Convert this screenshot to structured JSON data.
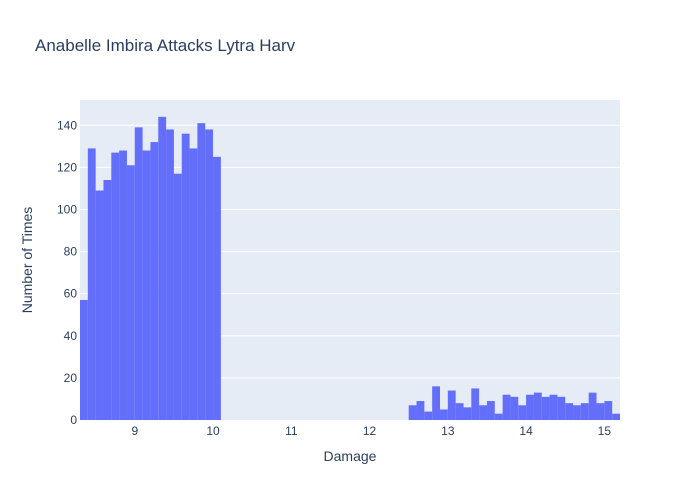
{
  "chart_data": {
    "type": "bar",
    "title": "Anabelle Imbira Attacks Lytra Harv",
    "xlabel": "Damage",
    "ylabel": "Number of Times",
    "xlim": [
      8.3,
      15.2
    ],
    "ylim": [
      0,
      152
    ],
    "bin_width": 0.1,
    "x_ticks": [
      9,
      10,
      11,
      12,
      13,
      14,
      15
    ],
    "x_tick_labels": [
      "9",
      "10",
      "11",
      "12",
      "13",
      "14",
      "15"
    ],
    "y_ticks": [
      0,
      20,
      40,
      60,
      80,
      100,
      120,
      140
    ],
    "y_tick_labels": [
      "0",
      "20",
      "40",
      "60",
      "80",
      "100",
      "120",
      "140"
    ],
    "grid": true,
    "legend": "none",
    "bar_color": "#636efa",
    "plot_bg": "#e5ecf6",
    "bins": [
      {
        "x": 8.3,
        "y": 57
      },
      {
        "x": 8.4,
        "y": 129
      },
      {
        "x": 8.5,
        "y": 109
      },
      {
        "x": 8.6,
        "y": 114
      },
      {
        "x": 8.7,
        "y": 127
      },
      {
        "x": 8.8,
        "y": 128
      },
      {
        "x": 8.9,
        "y": 121
      },
      {
        "x": 9.0,
        "y": 139
      },
      {
        "x": 9.1,
        "y": 128
      },
      {
        "x": 9.2,
        "y": 132
      },
      {
        "x": 9.3,
        "y": 144
      },
      {
        "x": 9.4,
        "y": 138
      },
      {
        "x": 9.5,
        "y": 117
      },
      {
        "x": 9.6,
        "y": 136
      },
      {
        "x": 9.7,
        "y": 129
      },
      {
        "x": 9.8,
        "y": 141
      },
      {
        "x": 9.9,
        "y": 138
      },
      {
        "x": 10.0,
        "y": 125
      },
      {
        "x": 12.5,
        "y": 7
      },
      {
        "x": 12.6,
        "y": 9
      },
      {
        "x": 12.7,
        "y": 4
      },
      {
        "x": 12.8,
        "y": 16
      },
      {
        "x": 12.9,
        "y": 5
      },
      {
        "x": 13.0,
        "y": 14
      },
      {
        "x": 13.1,
        "y": 8
      },
      {
        "x": 13.2,
        "y": 6
      },
      {
        "x": 13.3,
        "y": 15
      },
      {
        "x": 13.4,
        "y": 7
      },
      {
        "x": 13.5,
        "y": 9
      },
      {
        "x": 13.6,
        "y": 3
      },
      {
        "x": 13.7,
        "y": 12
      },
      {
        "x": 13.8,
        "y": 11
      },
      {
        "x": 13.9,
        "y": 7
      },
      {
        "x": 14.0,
        "y": 12
      },
      {
        "x": 14.1,
        "y": 13
      },
      {
        "x": 14.2,
        "y": 11
      },
      {
        "x": 14.3,
        "y": 12
      },
      {
        "x": 14.4,
        "y": 11
      },
      {
        "x": 14.5,
        "y": 8
      },
      {
        "x": 14.6,
        "y": 7
      },
      {
        "x": 14.7,
        "y": 8
      },
      {
        "x": 14.8,
        "y": 13
      },
      {
        "x": 14.9,
        "y": 8
      },
      {
        "x": 15.0,
        "y": 9
      },
      {
        "x": 15.1,
        "y": 3
      }
    ]
  }
}
